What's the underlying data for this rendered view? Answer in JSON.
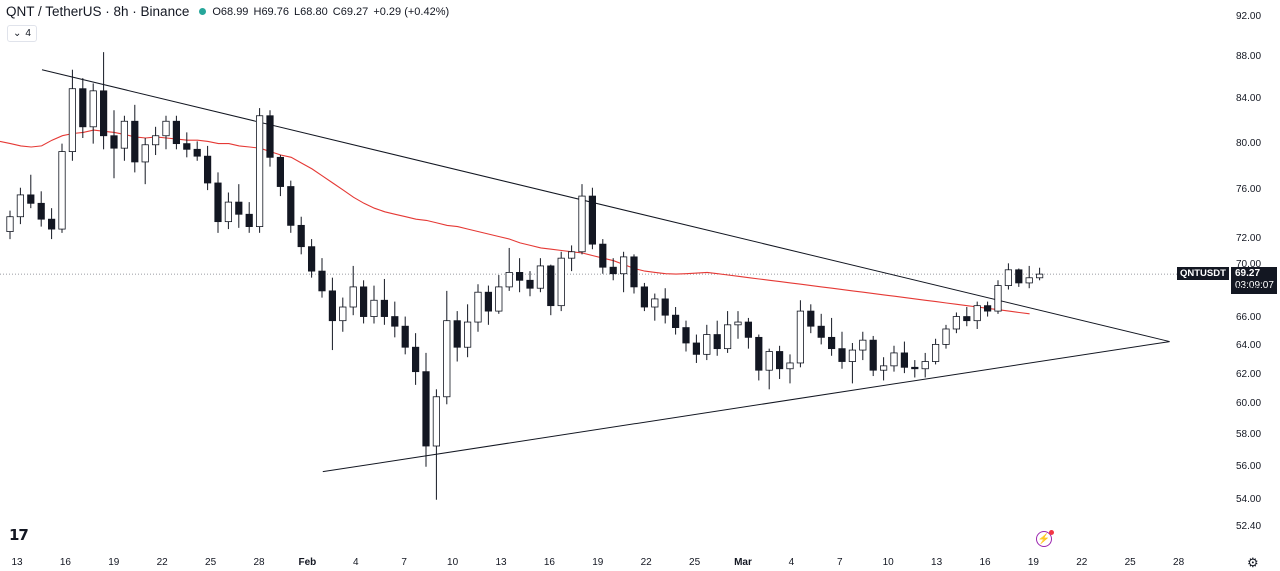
{
  "header": {
    "symbol": "QNT / TetherUS · 8h · Binance",
    "open": "O68.99",
    "high": "H69.76",
    "low": "L68.80",
    "close": "C69.27",
    "change": "+0.29 (+0.42%)",
    "indicator_count": "4"
  },
  "price_axis": {
    "ticks": [
      "92.00",
      "88.00",
      "84.00",
      "80.00",
      "76.00",
      "72.00",
      "70.00",
      "68.00",
      "66.00",
      "64.00",
      "62.00",
      "60.00",
      "58.00",
      "56.00",
      "54.00",
      "52.40"
    ],
    "symbol_badge": "QNTUSDT",
    "last_price": "69.27",
    "countdown": "03:09:07"
  },
  "time_axis": {
    "ticks": [
      "13",
      "16",
      "19",
      "22",
      "25",
      "28",
      "Feb",
      "4",
      "7",
      "10",
      "13",
      "16",
      "19",
      "22",
      "25",
      "Mar",
      "4",
      "7",
      "10",
      "13",
      "16",
      "19",
      "22",
      "25",
      "28"
    ]
  },
  "colors": {
    "up": "#ffffff",
    "down": "#131722",
    "ma_line": "#e53935",
    "trendline": "#131722",
    "accent": "#26a69a"
  },
  "icons": {
    "logo": "tradingview-logo-icon",
    "alert": "lightning-icon",
    "settings": "gear-icon",
    "toggle": "chevron-down-icon"
  },
  "chart_data": {
    "type": "candlestick",
    "symbol": "QNT / TetherUS",
    "interval": "8h",
    "exchange": "Binance",
    "ylim": [
      52.4,
      92.0
    ],
    "y_scale": "log",
    "last_close": 69.27,
    "grid": false,
    "candles": [
      [
        72.6,
        74.3,
        72.0,
        73.8
      ],
      [
        73.8,
        76.2,
        73.2,
        75.6
      ],
      [
        75.6,
        77.3,
        74.5,
        74.9
      ],
      [
        74.9,
        75.9,
        73.0,
        73.6
      ],
      [
        73.6,
        74.5,
        72.0,
        72.8
      ],
      [
        72.8,
        80.0,
        72.5,
        79.3
      ],
      [
        79.3,
        86.8,
        78.5,
        85.0
      ],
      [
        85.0,
        86.0,
        80.5,
        81.5
      ],
      [
        81.5,
        85.5,
        80.0,
        84.8
      ],
      [
        84.8,
        88.5,
        79.5,
        80.7
      ],
      [
        80.7,
        83.0,
        77.0,
        79.6
      ],
      [
        79.6,
        82.5,
        78.5,
        82.0
      ],
      [
        82.0,
        83.5,
        77.5,
        78.4
      ],
      [
        78.4,
        80.5,
        76.5,
        79.9
      ],
      [
        79.9,
        81.5,
        79.0,
        80.7
      ],
      [
        80.7,
        82.5,
        79.5,
        82.0
      ],
      [
        82.0,
        82.5,
        79.5,
        80.0
      ],
      [
        80.0,
        81.0,
        78.8,
        79.5
      ],
      [
        79.5,
        80.2,
        78.5,
        78.9
      ],
      [
        78.9,
        79.8,
        76.0,
        76.6
      ],
      [
        76.6,
        77.5,
        72.5,
        73.4
      ],
      [
        73.4,
        75.8,
        72.8,
        75.0
      ],
      [
        75.0,
        76.5,
        72.9,
        74.0
      ],
      [
        74.0,
        75.0,
        72.5,
        73.0
      ],
      [
        73.0,
        83.2,
        72.5,
        82.5
      ],
      [
        82.5,
        83.0,
        78.0,
        78.8
      ],
      [
        78.8,
        79.0,
        75.5,
        76.3
      ],
      [
        76.3,
        76.8,
        72.5,
        73.1
      ],
      [
        73.1,
        73.8,
        70.8,
        71.4
      ],
      [
        71.4,
        72.0,
        69.0,
        69.5
      ],
      [
        69.5,
        70.5,
        67.5,
        68.0
      ],
      [
        68.0,
        69.0,
        63.7,
        65.8
      ],
      [
        65.8,
        67.5,
        65.0,
        66.8
      ],
      [
        66.8,
        69.9,
        66.2,
        68.3
      ],
      [
        68.3,
        68.8,
        65.6,
        66.1
      ],
      [
        66.1,
        68.4,
        65.6,
        67.3
      ],
      [
        67.3,
        68.9,
        65.5,
        66.1
      ],
      [
        66.1,
        67.2,
        64.6,
        65.4
      ],
      [
        65.4,
        66.1,
        63.4,
        63.9
      ],
      [
        63.9,
        64.9,
        61.3,
        62.2
      ],
      [
        62.2,
        63.5,
        56.0,
        57.3
      ],
      [
        57.3,
        61.0,
        54.0,
        60.5
      ],
      [
        60.5,
        68.0,
        60.0,
        65.8
      ],
      [
        65.8,
        66.5,
        62.9,
        63.9
      ],
      [
        63.9,
        67.0,
        63.2,
        65.7
      ],
      [
        65.7,
        68.5,
        65.0,
        67.9
      ],
      [
        67.9,
        68.4,
        65.5,
        66.5
      ],
      [
        66.5,
        69.2,
        66.3,
        68.3
      ],
      [
        68.3,
        71.3,
        68.0,
        69.4
      ],
      [
        69.4,
        70.5,
        67.9,
        68.8
      ],
      [
        68.8,
        69.5,
        67.6,
        68.2
      ],
      [
        68.2,
        70.5,
        67.9,
        69.9
      ],
      [
        69.9,
        70.0,
        66.2,
        66.9
      ],
      [
        66.9,
        71.0,
        66.5,
        70.5
      ],
      [
        70.5,
        71.5,
        69.5,
        71.0
      ],
      [
        71.0,
        76.5,
        70.8,
        75.5
      ],
      [
        75.5,
        76.2,
        71.2,
        71.6
      ],
      [
        71.6,
        72.0,
        69.3,
        69.8
      ],
      [
        69.8,
        70.5,
        68.8,
        69.3
      ],
      [
        69.3,
        71.0,
        67.9,
        70.6
      ],
      [
        70.6,
        70.8,
        67.8,
        68.3
      ],
      [
        68.3,
        68.6,
        66.5,
        66.8
      ],
      [
        66.8,
        67.8,
        65.8,
        67.4
      ],
      [
        67.4,
        68.2,
        65.6,
        66.2
      ],
      [
        66.2,
        66.8,
        64.8,
        65.3
      ],
      [
        65.3,
        65.8,
        63.6,
        64.2
      ],
      [
        64.2,
        64.8,
        62.8,
        63.4
      ],
      [
        63.4,
        65.5,
        63.0,
        64.8
      ],
      [
        64.8,
        65.8,
        63.3,
        63.8
      ],
      [
        63.8,
        66.5,
        63.5,
        65.5
      ],
      [
        65.5,
        66.5,
        64.5,
        65.7
      ],
      [
        65.7,
        66.0,
        63.8,
        64.6
      ],
      [
        64.6,
        64.8,
        61.6,
        62.3
      ],
      [
        62.3,
        63.8,
        61.0,
        63.6
      ],
      [
        63.6,
        64.0,
        61.7,
        62.4
      ],
      [
        62.4,
        63.4,
        61.4,
        62.8
      ],
      [
        62.8,
        67.3,
        62.5,
        66.5
      ],
      [
        66.5,
        67.0,
        64.9,
        65.4
      ],
      [
        65.4,
        66.3,
        64.1,
        64.6
      ],
      [
        64.6,
        66.0,
        63.3,
        63.8
      ],
      [
        63.8,
        65.0,
        62.4,
        62.9
      ],
      [
        62.9,
        64.2,
        61.4,
        63.7
      ],
      [
        63.7,
        65.0,
        63.0,
        64.4
      ],
      [
        64.4,
        64.7,
        61.9,
        62.3
      ],
      [
        62.3,
        63.2,
        61.6,
        62.6
      ],
      [
        62.6,
        64.0,
        62.2,
        63.5
      ],
      [
        63.5,
        64.3,
        62.1,
        62.5
      ],
      [
        62.5,
        63.0,
        61.8,
        62.4
      ],
      [
        62.4,
        63.5,
        61.8,
        62.9
      ],
      [
        62.9,
        64.5,
        62.7,
        64.1
      ],
      [
        64.1,
        65.5,
        63.8,
        65.2
      ],
      [
        65.2,
        66.4,
        64.9,
        66.1
      ],
      [
        66.1,
        66.8,
        65.4,
        65.8
      ],
      [
        65.8,
        67.2,
        65.2,
        66.9
      ],
      [
        66.9,
        67.2,
        66.1,
        66.5
      ],
      [
        66.5,
        68.8,
        66.3,
        68.4
      ],
      [
        68.4,
        70.1,
        68.1,
        69.6
      ],
      [
        69.6,
        69.7,
        68.3,
        68.6
      ],
      [
        68.6,
        69.9,
        68.2,
        68.99
      ],
      [
        68.99,
        69.76,
        68.8,
        69.27
      ]
    ],
    "ma": {
      "name": "",
      "values": [
        80.2,
        80.0,
        79.8,
        79.7,
        79.8,
        80.3,
        80.7,
        80.9,
        81.0,
        81.2,
        81.1,
        81.0,
        80.8,
        80.6,
        80.5,
        80.6,
        80.5,
        80.4,
        80.3,
        80.3,
        80.2,
        80.0,
        80.0,
        79.8,
        79.7,
        79.6,
        79.3,
        79.0,
        78.8,
        78.3,
        77.8,
        77.2,
        76.6,
        76.0,
        75.4,
        74.9,
        74.5,
        74.2,
        74.0,
        73.8,
        73.6,
        73.5,
        73.3,
        73.1,
        73.0,
        72.8,
        72.6,
        72.4,
        72.2,
        72.0,
        71.7,
        71.5,
        71.3,
        71.2,
        71.1,
        71.0,
        70.9,
        70.7,
        70.5,
        70.3,
        70.0,
        69.7,
        69.5,
        69.4,
        69.3,
        69.27,
        69.3,
        69.35,
        69.4,
        69.3,
        69.2,
        69.1,
        69.0,
        68.9,
        68.8,
        68.7,
        68.6,
        68.5,
        68.4,
        68.3,
        68.2,
        68.1,
        68.0,
        67.9,
        67.8,
        67.7,
        67.6,
        67.5,
        67.4,
        67.3,
        67.2,
        67.1,
        67.0,
        66.9,
        66.8,
        66.7,
        66.6,
        66.5,
        66.4,
        66.3
      ]
    },
    "trendlines": [
      {
        "name": "descending-resistance",
        "from": [
          0,
          86.8
        ],
        "to": [
          99,
          64.3
        ]
      },
      {
        "name": "ascending-support",
        "from": [
          27,
          55.7
        ],
        "to": [
          99,
          64.3
        ]
      }
    ]
  }
}
